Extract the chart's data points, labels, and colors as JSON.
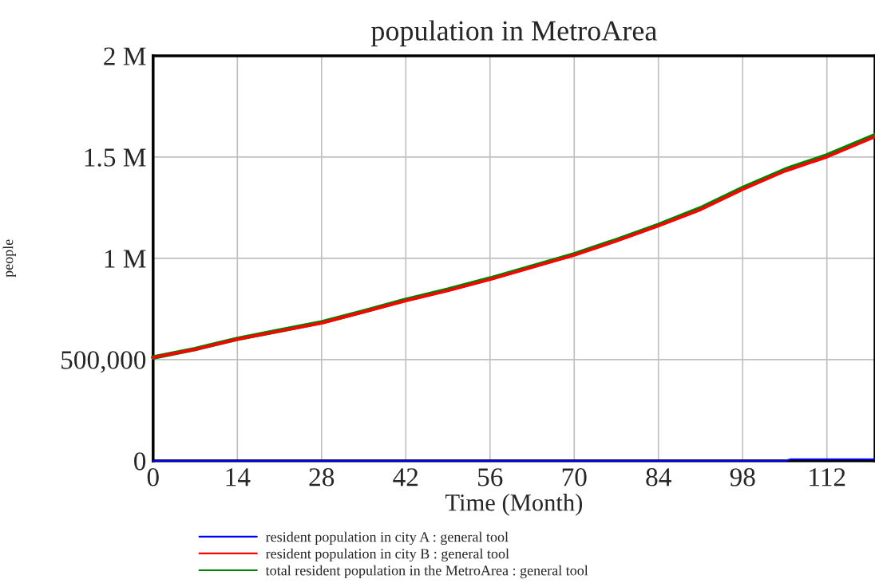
{
  "chart_data": {
    "type": "line",
    "title": "population in MetroArea",
    "xlabel": "Time (Month)",
    "ylabel": "people",
    "x": [
      0,
      7,
      14,
      21,
      28,
      35,
      42,
      49,
      56,
      63,
      70,
      77,
      84,
      91,
      98,
      105,
      106,
      112,
      120
    ],
    "series": [
      {
        "name": "resident population in city A : general tool",
        "color": "#0000ff",
        "values": [
          0,
          0,
          0,
          0,
          0,
          0,
          0,
          0,
          0,
          0,
          0,
          0,
          0,
          0,
          0,
          0,
          8000,
          8000,
          8000
        ]
      },
      {
        "name": "resident population in city B : general tool",
        "color": "#ff0000",
        "values": [
          510000,
          550000,
          600000,
          640000,
          680000,
          735000,
          790000,
          840000,
          895000,
          955000,
          1015000,
          1085000,
          1160000,
          1240000,
          1340000,
          1430000,
          1440000,
          1500000,
          1600000
        ]
      },
      {
        "name": "total resident population in the MetroArea : general tool",
        "color": "#008000",
        "values": [
          510000,
          552000,
          602000,
          643000,
          684000,
          738000,
          795000,
          845000,
          900000,
          960000,
          1020000,
          1090000,
          1165000,
          1247000,
          1347000,
          1437000,
          1448000,
          1508000,
          1608000
        ]
      }
    ],
    "xlim": [
      0,
      120
    ],
    "xticks": [
      0,
      14,
      28,
      42,
      56,
      70,
      84,
      98,
      112
    ],
    "ylim": [
      0,
      2000000
    ],
    "yticks": [
      {
        "value": 0,
        "label": "0"
      },
      {
        "value": 500000,
        "label": "500,000"
      },
      {
        "value": 1000000,
        "label": "1 M"
      },
      {
        "value": 1500000,
        "label": "1.5 M"
      },
      {
        "value": 2000000,
        "label": "2 M"
      }
    ],
    "grid": true,
    "legend": "bottom",
    "line_style": "solid",
    "marker": "none"
  }
}
